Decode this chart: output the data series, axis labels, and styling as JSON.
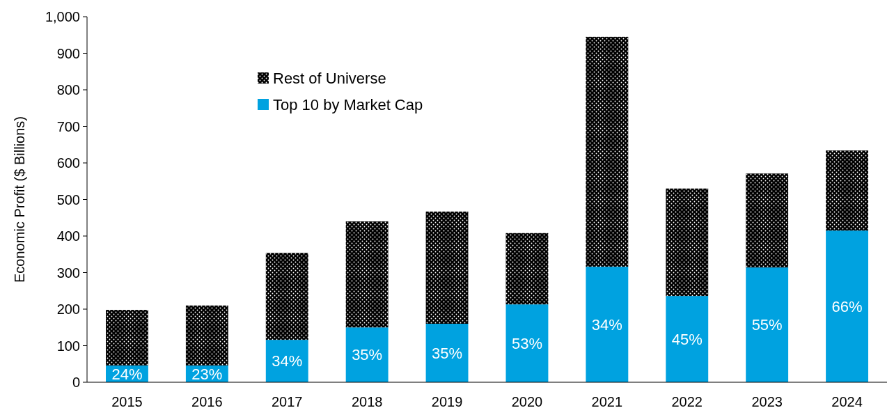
{
  "chart_data": {
    "type": "bar",
    "stacked": true,
    "ylabel": "Economic Profit ($ Billions)",
    "categories": [
      "2015",
      "2016",
      "2017",
      "2018",
      "2019",
      "2020",
      "2021",
      "2022",
      "2023",
      "2024"
    ],
    "series": [
      {
        "name": "Top 10 by Market Cap",
        "color": "#00a2e0",
        "values": [
          46,
          46,
          116,
          150,
          160,
          213,
          316,
          236,
          314,
          415
        ]
      },
      {
        "name": "Rest of Universe",
        "color": "#000000",
        "values": [
          152,
          164,
          238,
          290,
          307,
          195,
          629,
          294,
          257,
          219
        ]
      }
    ],
    "annotations": [
      "24%",
      "23%",
      "34%",
      "35%",
      "35%",
      "53%",
      "34%",
      "45%",
      "55%",
      "66%"
    ],
    "ylim": [
      0,
      1000
    ],
    "yticks": [
      0,
      100,
      200,
      300,
      400,
      500,
      600,
      700,
      800,
      900,
      {
        "value": 1000,
        "label": "1,000"
      }
    ],
    "grid": false,
    "legend": "top left"
  }
}
